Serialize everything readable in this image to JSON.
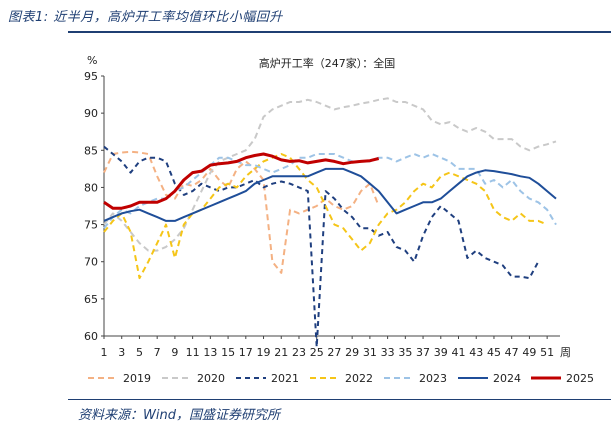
{
  "figure": {
    "caption": "图表1: 近半月，高炉开工率均值环比小幅回升",
    "source": "资料来源：Wind，国盛证券研究所"
  },
  "chart_data": {
    "type": "line",
    "title": "高炉开工率（247家）：全国",
    "ylabel": "%",
    "xlabel": "周",
    "ylim": [
      60,
      95
    ],
    "xlim": [
      1,
      52
    ],
    "yticks": [
      60,
      65,
      70,
      75,
      80,
      85,
      90,
      95
    ],
    "xticks": [
      1,
      3,
      5,
      7,
      9,
      11,
      13,
      15,
      17,
      19,
      21,
      23,
      25,
      27,
      29,
      31,
      33,
      35,
      37,
      39,
      41,
      43,
      45,
      47,
      49,
      51
    ],
    "series": [
      {
        "name": "2019",
        "color": "#f4b183",
        "dash": "6,4",
        "width": 2,
        "x": [
          1,
          2,
          3,
          4,
          5,
          6,
          7,
          8,
          9,
          10,
          11,
          12,
          13,
          14,
          15,
          16,
          17,
          18,
          19,
          20,
          21,
          22,
          23,
          24,
          25,
          26,
          27,
          28,
          29,
          30,
          31,
          32
        ],
        "values": [
          82.0,
          84.5,
          84.7,
          84.8,
          84.7,
          84.5,
          81.5,
          79.0,
          78.5,
          80.5,
          80.2,
          81.0,
          82.5,
          81.0,
          80.0,
          82.5,
          83.5,
          82.5,
          81.0,
          70.0,
          68.5,
          77.0,
          76.5,
          77.0,
          77.5,
          78.5,
          77.5,
          77.0,
          77.5,
          79.5,
          80.5,
          77.5
        ]
      },
      {
        "name": "2020",
        "color": "#c9c9c9",
        "dash": "6,4",
        "width": 2,
        "x": [
          1,
          2,
          3,
          4,
          5,
          6,
          7,
          8,
          9,
          10,
          11,
          12,
          13,
          14,
          15,
          16,
          17,
          18,
          19,
          20,
          21,
          22,
          23,
          24,
          25,
          26,
          27,
          28,
          29,
          30,
          31,
          32,
          33,
          34,
          35,
          36,
          37,
          38,
          39,
          40,
          41,
          42,
          43,
          44,
          45,
          46,
          47,
          48,
          49,
          50,
          51,
          52
        ],
        "values": [
          75.0,
          76.5,
          75.5,
          74.0,
          72.5,
          71.5,
          71.5,
          72.0,
          73.0,
          74.5,
          77.0,
          79.5,
          82.0,
          83.5,
          84.0,
          84.5,
          85.0,
          86.5,
          89.5,
          90.5,
          91.0,
          91.5,
          91.5,
          91.8,
          91.5,
          91.0,
          90.5,
          90.8,
          91.0,
          91.3,
          91.5,
          91.8,
          92.0,
          91.5,
          91.5,
          91.0,
          90.5,
          89.0,
          88.5,
          88.8,
          88.0,
          87.5,
          88.0,
          87.5,
          86.5,
          86.5,
          86.5,
          85.5,
          85.0,
          85.5,
          85.8,
          86.2
        ]
      },
      {
        "name": "2021",
        "color": "#1f3f7f",
        "dash": "5,4",
        "width": 2,
        "x": [
          1,
          2,
          3,
          4,
          5,
          6,
          7,
          8,
          9,
          10,
          11,
          12,
          13,
          14,
          15,
          16,
          17,
          18,
          19,
          20,
          21,
          22,
          23,
          24,
          25,
          26,
          27,
          28,
          29,
          30,
          31,
          32,
          33,
          34,
          35,
          36,
          37,
          38,
          39,
          40,
          41,
          42,
          43,
          44,
          45,
          46,
          47,
          48,
          49,
          50
        ],
        "values": [
          85.5,
          84.5,
          83.5,
          82.0,
          83.5,
          84.0,
          84.0,
          83.5,
          80.5,
          79.0,
          79.5,
          80.5,
          80.0,
          79.5,
          80.0,
          80.0,
          80.5,
          81.0,
          80.0,
          80.5,
          80.8,
          80.5,
          80.0,
          79.5,
          58.5,
          79.5,
          78.5,
          77.0,
          76.0,
          74.5,
          74.5,
          73.5,
          74.0,
          72.0,
          71.5,
          70.0,
          73.5,
          76.0,
          77.5,
          76.5,
          75.5,
          70.5,
          71.5,
          70.5,
          70.0,
          69.5,
          68.0,
          68.0,
          67.8,
          70.0
        ]
      },
      {
        "name": "2022",
        "color": "#f5c518",
        "dash": "6,4",
        "width": 2,
        "x": [
          1,
          2,
          3,
          4,
          5,
          6,
          7,
          8,
          9,
          10,
          11,
          12,
          13,
          14,
          15,
          16,
          17,
          18,
          19,
          20,
          21,
          22,
          23,
          24,
          25,
          26,
          27,
          28,
          29,
          30,
          31,
          32,
          33,
          34,
          35,
          36,
          37,
          38,
          39,
          40,
          41,
          42,
          43,
          44,
          45,
          46,
          47,
          48,
          49,
          50,
          51
        ],
        "values": [
          74.0,
          75.5,
          76.5,
          74.0,
          67.8,
          70.0,
          72.5,
          75.0,
          70.5,
          75.0,
          76.5,
          77.0,
          78.5,
          80.0,
          80.5,
          80.0,
          81.5,
          82.5,
          83.5,
          84.0,
          84.5,
          84.0,
          82.5,
          81.0,
          80.0,
          77.5,
          75.0,
          74.5,
          73.0,
          71.5,
          72.5,
          75.0,
          76.5,
          77.0,
          78.0,
          79.5,
          80.5,
          80.0,
          81.5,
          82.0,
          81.5,
          81.0,
          80.5,
          79.5,
          77.0,
          76.0,
          75.5,
          76.5,
          75.5,
          75.5,
          75.0
        ]
      },
      {
        "name": "2023",
        "color": "#9dc3e6",
        "dash": "6,4",
        "width": 2,
        "x": [
          1,
          2,
          3,
          4,
          5,
          6,
          7,
          8,
          9,
          10,
          11,
          12,
          13,
          14,
          15,
          16,
          17,
          18,
          19,
          20,
          21,
          22,
          23,
          24,
          25,
          26,
          27,
          28,
          29,
          30,
          31,
          32,
          33,
          34,
          35,
          36,
          37,
          38,
          39,
          40,
          41,
          42,
          43,
          44,
          45,
          46,
          47,
          48,
          49,
          50,
          51,
          52
        ],
        "values": [
          74.5,
          76.0,
          77.0,
          76.5,
          77.5,
          78.0,
          78.5,
          78.5,
          79.5,
          80.0,
          81.0,
          82.0,
          83.0,
          84.0,
          84.0,
          83.5,
          83.0,
          83.0,
          82.5,
          82.0,
          82.5,
          83.0,
          84.0,
          84.0,
          84.5,
          84.5,
          84.5,
          84.0,
          83.5,
          83.5,
          83.5,
          84.0,
          84.0,
          83.5,
          84.0,
          84.5,
          84.0,
          84.5,
          84.0,
          83.5,
          82.5,
          82.5,
          82.5,
          80.5,
          81.0,
          80.0,
          81.0,
          79.5,
          78.5,
          78.0,
          77.0,
          75.0
        ]
      },
      {
        "name": "2024",
        "color": "#1f4e99",
        "dash": "",
        "width": 2,
        "x": [
          1,
          2,
          3,
          4,
          5,
          6,
          7,
          8,
          9,
          10,
          11,
          12,
          13,
          14,
          15,
          16,
          17,
          18,
          19,
          20,
          21,
          22,
          23,
          24,
          25,
          26,
          27,
          28,
          29,
          30,
          31,
          32,
          33,
          34,
          35,
          36,
          37,
          38,
          39,
          40,
          41,
          42,
          43,
          44,
          45,
          46,
          47,
          48,
          49,
          50,
          51,
          52
        ],
        "values": [
          75.5,
          76.0,
          76.5,
          76.8,
          77.0,
          76.5,
          76.0,
          75.5,
          75.5,
          76.0,
          76.5,
          77.0,
          77.5,
          78.0,
          78.5,
          79.0,
          79.5,
          80.5,
          81.0,
          81.5,
          81.5,
          81.5,
          81.5,
          81.5,
          82.0,
          82.5,
          82.5,
          82.5,
          82.0,
          81.5,
          80.5,
          79.5,
          78.0,
          76.5,
          77.0,
          77.5,
          78.0,
          78.0,
          78.5,
          79.5,
          80.5,
          81.5,
          82.0,
          82.3,
          82.2,
          82.0,
          81.8,
          81.5,
          81.3,
          80.5,
          79.5,
          78.5
        ]
      },
      {
        "name": "2025",
        "color": "#c00000",
        "dash": "",
        "width": 3,
        "x": [
          1,
          2,
          3,
          4,
          5,
          6,
          7,
          8,
          9,
          10,
          11,
          12,
          13,
          14,
          15,
          16,
          17,
          18,
          19,
          20,
          21,
          22,
          23,
          24,
          25,
          26,
          27,
          28,
          29,
          30,
          31,
          32
        ],
        "values": [
          78.0,
          77.2,
          77.2,
          77.5,
          78.0,
          78.0,
          78.0,
          78.5,
          79.5,
          81.0,
          82.0,
          82.2,
          83.0,
          83.2,
          83.3,
          83.5,
          84.0,
          84.3,
          84.5,
          84.2,
          83.7,
          83.5,
          83.6,
          83.3,
          83.5,
          83.7,
          83.5,
          83.2,
          83.4,
          83.5,
          83.6,
          83.9
        ]
      }
    ],
    "legend_position": "bottom"
  }
}
